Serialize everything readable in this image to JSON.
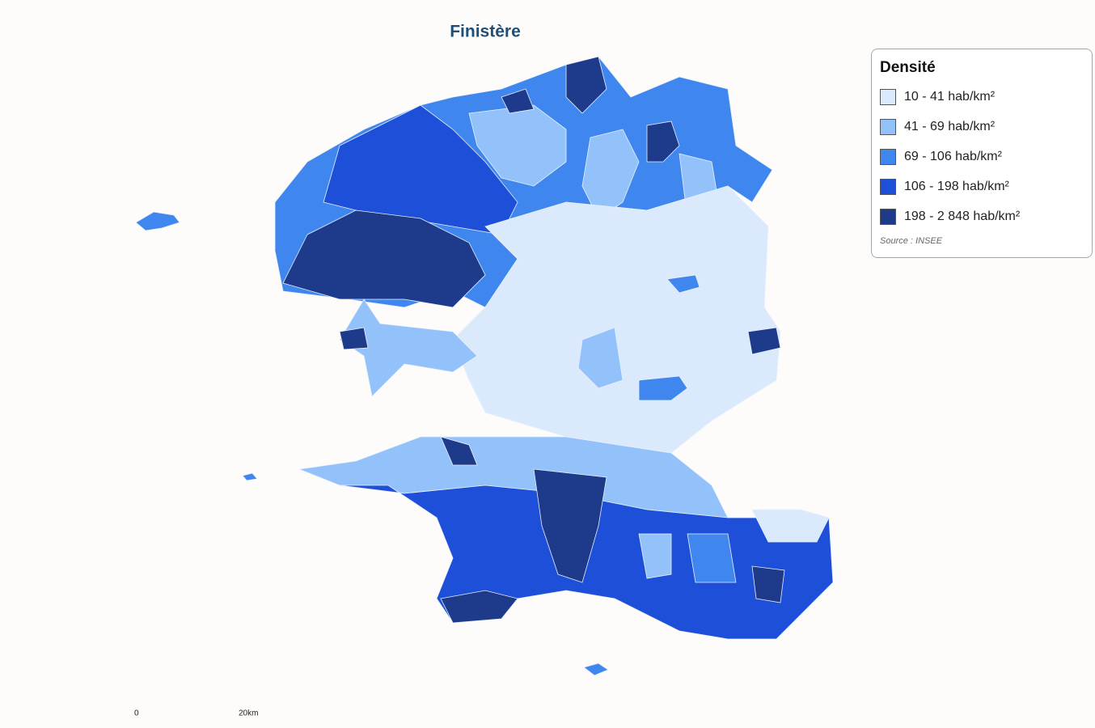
{
  "title": "Finistère",
  "legend": {
    "title": "Densité",
    "items": [
      {
        "label": "10 - 41 hab/km²",
        "color": "#dbe9fd"
      },
      {
        "label": "41 - 69 hab/km²",
        "color": "#93c2fb"
      },
      {
        "label": "69 - 106 hab/km²",
        "color": "#3f87ef"
      },
      {
        "label": "106 - 198 hab/km²",
        "color": "#1d4fd8"
      },
      {
        "label": "198 - 2 848 hab/km²",
        "color": "#1e3a8a"
      }
    ],
    "source": "Source : INSEE"
  },
  "scale": {
    "labels": [
      "0",
      "20km"
    ]
  }
}
